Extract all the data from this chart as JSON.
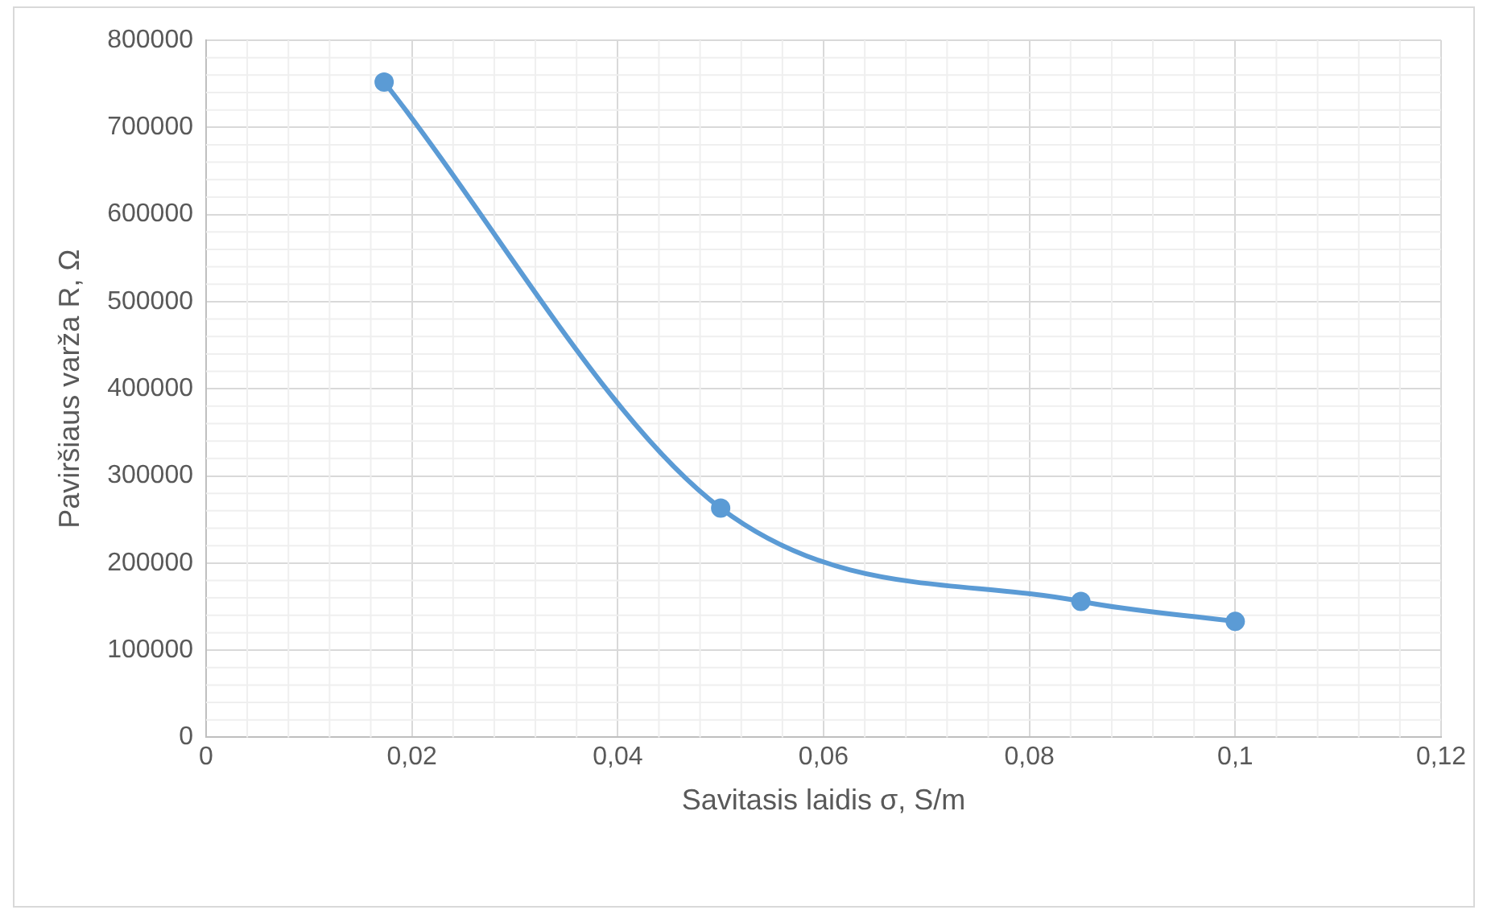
{
  "chart_data": {
    "type": "line",
    "xlabel": "Savitasis laidis σ, S/m",
    "ylabel": "Paviršiaus varža R, Ω",
    "x": [
      0.0173,
      0.05,
      0.085,
      0.1
    ],
    "series": [
      {
        "color": "#5b9bd5",
        "values": [
          752000,
          263000,
          156000,
          133000
        ]
      }
    ],
    "xlim": [
      0,
      0.12
    ],
    "xticks": [
      {
        "value": 0,
        "label": "0"
      },
      {
        "value": 0.02,
        "label": "0,02"
      },
      {
        "value": 0.04,
        "label": "0,04"
      },
      {
        "value": 0.06,
        "label": "0,06"
      },
      {
        "value": 0.08,
        "label": "0,08"
      },
      {
        "value": 0.1,
        "label": "0,1"
      },
      {
        "value": 0.12,
        "label": "0,12"
      }
    ],
    "ylim": [
      0,
      800000
    ],
    "yticks": [
      0,
      100000,
      200000,
      300000,
      400000,
      500000,
      600000,
      700000,
      800000
    ],
    "grid": true,
    "legend": false,
    "marker": "circle",
    "line_style": "solid"
  }
}
